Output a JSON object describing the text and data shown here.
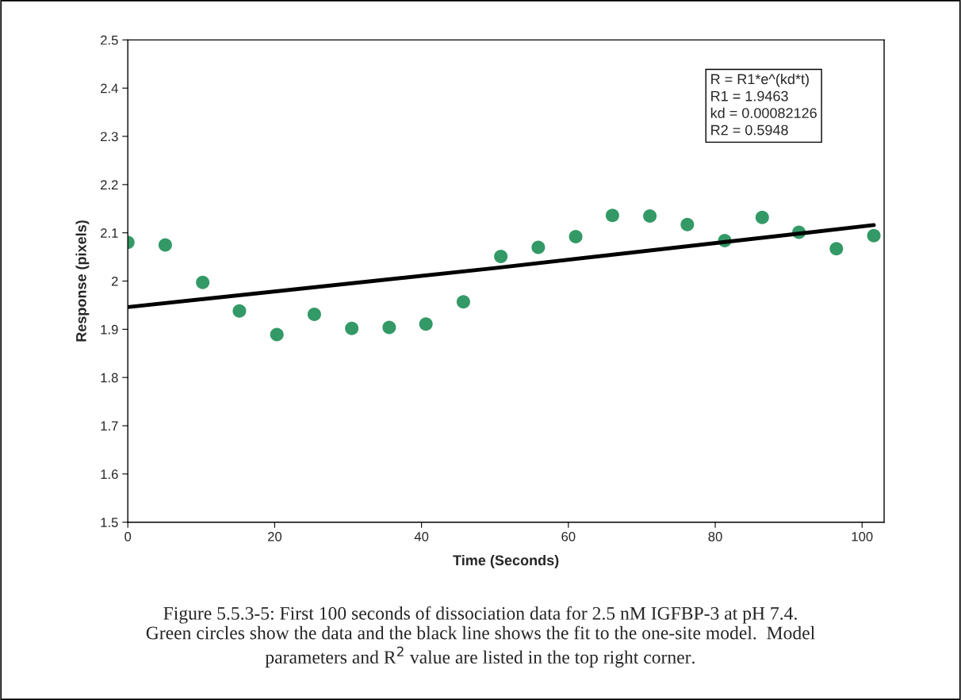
{
  "chart_data": {
    "type": "scatter",
    "xlabel": "Time (Seconds)",
    "ylabel": "Response (pixels)",
    "x": [
      0,
      5.1,
      10.2,
      15.2,
      20.3,
      25.4,
      30.5,
      35.6,
      40.6,
      45.7,
      50.8,
      55.9,
      61,
      66,
      71.1,
      76.2,
      81.3,
      86.4,
      91.4,
      96.5,
      101.6
    ],
    "series": [
      {
        "color": "#339966",
        "marker": "circle",
        "values": [
          2.08,
          2.075,
          1.997,
          1.938,
          1.889,
          1.931,
          1.902,
          1.904,
          1.911,
          1.957,
          2.051,
          2.07,
          2.092,
          2.136,
          2.135,
          2.117,
          2.084,
          2.132,
          2.101,
          2.067,
          2.094
        ]
      },
      {
        "type": "line",
        "color": "#000000",
        "line_style": "solid",
        "x": [
          0,
          50,
          101.6
        ],
        "values": [
          1.946,
          2.027,
          2.116
        ]
      }
    ],
    "xlim": [
      0,
      103
    ],
    "xticks": [
      0,
      20,
      40,
      60,
      80,
      100
    ],
    "ylim": [
      1.5,
      2.5
    ],
    "yticks": [
      1.5,
      1.6,
      1.7,
      1.8,
      1.9,
      2,
      2.1,
      2.2,
      2.3,
      2.4,
      2.5
    ],
    "grid": false,
    "legend": false,
    "annotations": [
      "R = R1*e^(kd*t)\nR1 = 1.9463\nkd = 0.00082126\nR2 = 0.5948",
      "Figure 5.5.3-5: First 100 seconds of dissociation data for 2.5 nM IGFBP-3 at pH 7.4.\nGreen circles show the data and the black line shows the fit to the one-site model.  Model\nparameters and R$^{2}$ value are listed in the top right corner."
    ]
  }
}
